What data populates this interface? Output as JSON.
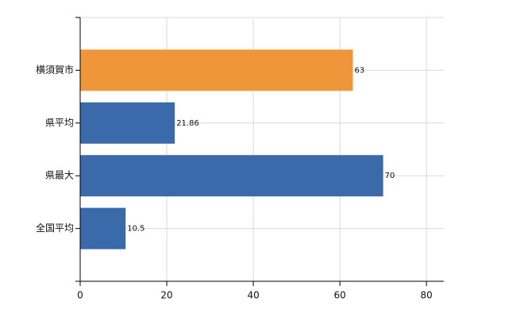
{
  "chart_data": {
    "type": "bar",
    "orientation": "horizontal",
    "categories": [
      "横須賀市",
      "県平均",
      "県最大",
      "全国平均"
    ],
    "values": [
      63,
      21.86,
      70,
      10.5
    ],
    "colors": [
      "#f0963a",
      "#3a6aaa",
      "#3a6aaa",
      "#3a6aaa"
    ],
    "xlim": [
      0,
      84
    ],
    "xticks": [
      0,
      20,
      40,
      60,
      80
    ],
    "grid": true
  }
}
